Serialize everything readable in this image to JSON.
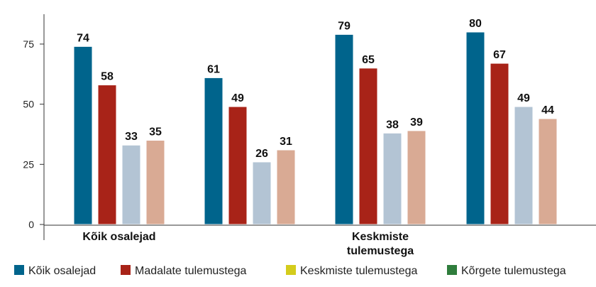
{
  "chart_data": {
    "type": "bar",
    "categories": [
      [
        "Kõik osalejad"
      ],
      [],
      [
        "Keskmiste",
        "tulemustega"
      ],
      []
    ],
    "series": [
      {
        "name": "Kõik osalejad",
        "values": [
          74,
          61,
          79,
          80
        ]
      },
      {
        "name": "Madalate tulemustega",
        "values": [
          58,
          49,
          65,
          67
        ]
      },
      {
        "name": "Keskmiste tulemustega",
        "values": [
          33,
          26,
          38,
          49
        ]
      },
      {
        "name": "Kõrgete tulemustega",
        "values": [
          35,
          31,
          39,
          44
        ]
      }
    ],
    "bar_colors": [
      "#00648c",
      "#a82318",
      "#b3c4d4",
      "#d9aa94"
    ],
    "legend_colors": [
      "#00648c",
      "#a82318",
      "#d4cc1c",
      "#2f7d3c"
    ],
    "data_labels": [
      [
        "74",
        "58",
        "33",
        "35"
      ],
      [
        "61",
        "49",
        "26",
        "31"
      ],
      [
        "79",
        "65",
        "38",
        "39"
      ],
      [
        "80",
        "67",
        "49",
        "44"
      ]
    ],
    "yticks": [
      0,
      25,
      50,
      75
    ],
    "ytick_labels": [
      "0",
      "25",
      "50",
      "75"
    ],
    "ylim": [
      0,
      88
    ],
    "grid": false,
    "legend_position": "bottom",
    "title": "",
    "xlabel": "",
    "ylabel": ""
  }
}
